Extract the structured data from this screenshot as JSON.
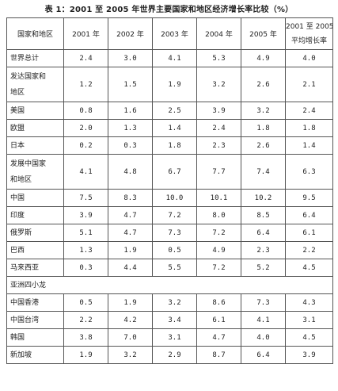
{
  "title": "表 1：2001 至 2005 年世界主要国家和地区经济增长率比较（%）",
  "columns": [
    "国家和地区",
    "2001 年",
    "2002 年",
    "2003 年",
    "2004 年",
    "2005 年",
    "2001 至 2005 年",
    "平均增长率"
  ],
  "rows": [
    {
      "label": [
        "世界总计"
      ],
      "values": [
        "2.4",
        "3.0",
        "4.1",
        "5.3",
        "4.9",
        "4.0"
      ]
    },
    {
      "label": [
        "发达国家和",
        "地区"
      ],
      "values": [
        "1.2",
        "1.5",
        "1.9",
        "3.2",
        "2.6",
        "2.1"
      ]
    },
    {
      "label": [
        "美国"
      ],
      "values": [
        "0.8",
        "1.6",
        "2.5",
        "3.9",
        "3.2",
        "2.4"
      ]
    },
    {
      "label": [
        "欧盟"
      ],
      "values": [
        "2.0",
        "1.3",
        "1.4",
        "2.4",
        "1.8",
        "1.8"
      ]
    },
    {
      "label": [
        "日本"
      ],
      "values": [
        "0.2",
        "0.3",
        "1.8",
        "2.3",
        "2.6",
        "1.4"
      ]
    },
    {
      "label": [
        "发展中国家",
        "和地区"
      ],
      "values": [
        "4.1",
        "4.8",
        "6.7",
        "7.7",
        "7.4",
        "6.3"
      ]
    },
    {
      "label": [
        "中国"
      ],
      "values": [
        "7.5",
        "8.3",
        "10.0",
        "10.1",
        "10.2",
        "9.5"
      ]
    },
    {
      "label": [
        "印度"
      ],
      "values": [
        "3.9",
        "4.7",
        "7.2",
        "8.0",
        "8.5",
        "6.4"
      ]
    },
    {
      "label": [
        "俄罗斯"
      ],
      "values": [
        "5.1",
        "4.7",
        "7.3",
        "7.2",
        "6.4",
        "6.1"
      ]
    },
    {
      "label": [
        "巴西"
      ],
      "values": [
        "1.3",
        "1.9",
        "0.5",
        "4.9",
        "2.3",
        "2.2"
      ]
    },
    {
      "label": [
        "马来西亚"
      ],
      "values": [
        "0.3",
        "4.4",
        "5.5",
        "7.2",
        "5.2",
        "4.5"
      ]
    },
    {
      "label": [
        "亚洲四小龙"
      ],
      "values": []
    },
    {
      "label": [
        "中国香港"
      ],
      "values": [
        "0.5",
        "1.9",
        "3.2",
        "8.6",
        "7.3",
        "4.3"
      ]
    },
    {
      "label": [
        "中国台湾"
      ],
      "values": [
        "2.2",
        "4.2",
        "3.4",
        "6.1",
        "4.1",
        "3.1"
      ]
    },
    {
      "label": [
        "韩国"
      ],
      "values": [
        "3.8",
        "7.0",
        "3.1",
        "4.7",
        "4.0",
        "4.5"
      ]
    },
    {
      "label": [
        "新加坡"
      ],
      "values": [
        "1.9",
        "3.2",
        "2.9",
        "8.7",
        "6.4",
        "3.9"
      ]
    }
  ]
}
